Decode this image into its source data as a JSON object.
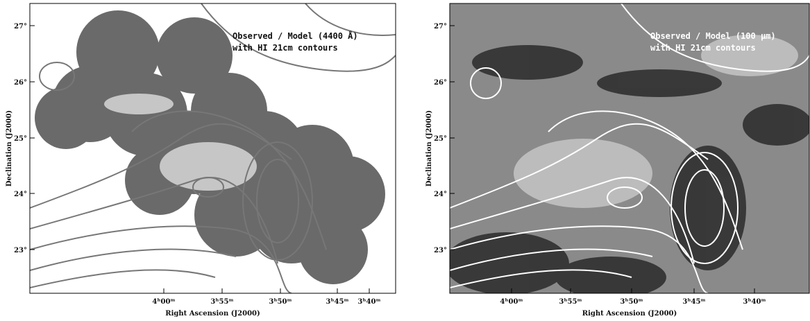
{
  "panels": [
    {
      "annotation": [
        "Observed / Model (4400 Å)",
        "with HI 21cm contours"
      ],
      "x_axis_label": "Right Ascension (J2000)",
      "y_axis_label": "Declination (J2000)",
      "x_tick_labels": [
        "4ʰ00ᵐ",
        "3ʰ55ᵐ",
        "3ʰ50ᵐ",
        "3ʰ45ᵐ",
        "3ʰ40ᵐ"
      ],
      "y_tick_labels": [
        "27°",
        "26°",
        "25°",
        "24°",
        "23°"
      ]
    },
    {
      "annotation": [
        "Observed / Model (100 μm)",
        "with HI 21cm contours"
      ],
      "x_axis_label": "Right Ascension (J2000)",
      "y_axis_label": "Declination (J2000)",
      "x_tick_labels": [
        "4ʰ00ᵐ",
        "3ʰ55ᵐ",
        "3ʰ50ᵐ",
        "3ʰ45ᵐ",
        "3ʰ40ᵐ"
      ],
      "y_tick_labels": [
        "27°",
        "26°",
        "25°",
        "24°",
        "23°"
      ]
    }
  ]
}
